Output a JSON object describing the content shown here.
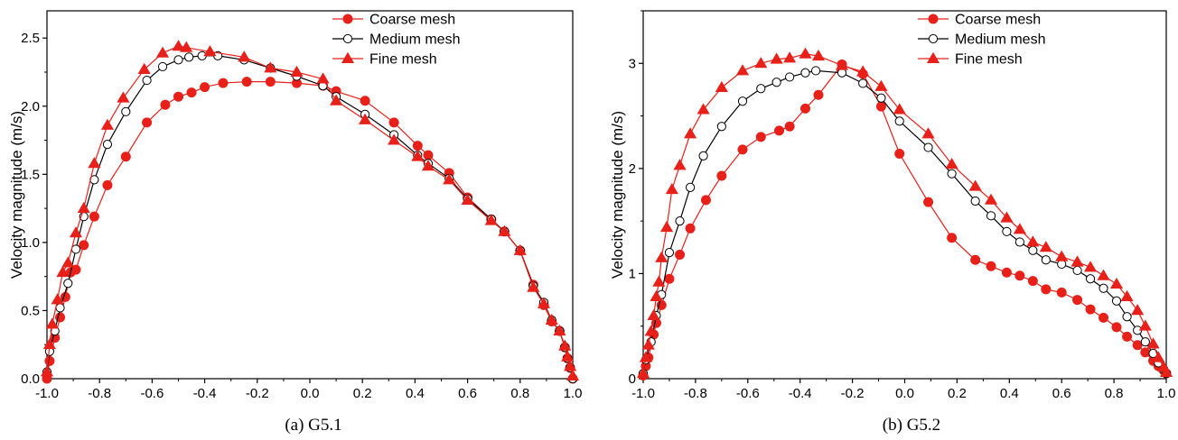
{
  "colors": {
    "red": "#e8201a",
    "black": "#000000",
    "white": "#ffffff"
  },
  "chart_data": [
    {
      "type": "line",
      "caption": "(a) G5.1",
      "xlabel": "",
      "ylabel": "Velocity magnitude (m/s)",
      "xlim": [
        -1.0,
        1.0
      ],
      "ylim": [
        0.0,
        2.7
      ],
      "xticks": [
        -1.0,
        -0.8,
        -0.6,
        -0.4,
        -0.2,
        0.0,
        0.2,
        0.4,
        0.6,
        0.8,
        1.0
      ],
      "xtick_labels": [
        "-1.0",
        "-0.8",
        "-0.6",
        "-0.4",
        "-0.2",
        "0.0",
        "0.2",
        "0.4",
        "0.6",
        "0.8",
        "1.0"
      ],
      "yticks": [
        0.0,
        0.5,
        1.0,
        1.5,
        2.0,
        2.5
      ],
      "ytick_labels": [
        "0.0",
        "0.5",
        "1.0",
        "1.5",
        "2.0",
        "2.5"
      ],
      "legend_position": "top-right",
      "series": [
        {
          "name": "Coarse mesh",
          "marker": "circle-filled",
          "color": "#e8201a",
          "x": [
            -1.0,
            -0.99,
            -0.97,
            -0.95,
            -0.93,
            -0.91,
            -0.89,
            -0.86,
            -0.82,
            -0.77,
            -0.7,
            -0.62,
            -0.55,
            -0.5,
            -0.45,
            -0.4,
            -0.33,
            -0.24,
            -0.15,
            -0.05,
            0.05,
            0.1,
            0.21,
            0.32,
            0.41,
            0.45,
            0.53,
            0.6,
            0.69,
            0.74,
            0.8,
            0.85,
            0.89,
            0.92,
            0.95,
            0.97,
            0.98,
            0.99,
            1.0
          ],
          "y": [
            0.0,
            0.13,
            0.3,
            0.45,
            0.6,
            0.78,
            0.8,
            0.98,
            1.19,
            1.42,
            1.63,
            1.88,
            2.01,
            2.07,
            2.1,
            2.14,
            2.17,
            2.18,
            2.18,
            2.17,
            2.15,
            2.11,
            2.04,
            1.88,
            1.71,
            1.64,
            1.51,
            1.33,
            1.17,
            1.08,
            0.94,
            0.69,
            0.54,
            0.42,
            0.35,
            0.23,
            0.15,
            0.08,
            0.0
          ]
        },
        {
          "name": "Medium mesh",
          "marker": "circle-open",
          "color": "#000000",
          "x": [
            -1.0,
            -0.99,
            -0.97,
            -0.95,
            -0.92,
            -0.89,
            -0.86,
            -0.82,
            -0.77,
            -0.7,
            -0.62,
            -0.56,
            -0.5,
            -0.46,
            -0.41,
            -0.35,
            -0.25,
            -0.15,
            -0.05,
            0.05,
            0.1,
            0.21,
            0.32,
            0.41,
            0.45,
            0.53,
            0.6,
            0.69,
            0.74,
            0.8,
            0.85,
            0.89,
            0.92,
            0.95,
            0.97,
            0.98,
            0.99,
            1.0
          ],
          "y": [
            0.05,
            0.2,
            0.35,
            0.52,
            0.7,
            0.95,
            1.19,
            1.46,
            1.72,
            1.96,
            2.19,
            2.29,
            2.34,
            2.36,
            2.37,
            2.37,
            2.34,
            2.28,
            2.22,
            2.15,
            2.07,
            1.94,
            1.79,
            1.64,
            1.58,
            1.47,
            1.32,
            1.17,
            1.08,
            0.94,
            0.68,
            0.56,
            0.43,
            0.35,
            0.23,
            0.15,
            0.08,
            0.0
          ]
        },
        {
          "name": "Fine mesh",
          "marker": "triangle-filled",
          "color": "#e8201a",
          "x": [
            -1.0,
            -0.99,
            -0.98,
            -0.96,
            -0.94,
            -0.92,
            -0.89,
            -0.86,
            -0.82,
            -0.77,
            -0.71,
            -0.63,
            -0.56,
            -0.5,
            -0.47,
            -0.38,
            -0.25,
            -0.15,
            -0.05,
            0.05,
            0.1,
            0.21,
            0.32,
            0.41,
            0.45,
            0.53,
            0.6,
            0.69,
            0.74,
            0.8,
            0.85,
            0.89,
            0.92,
            0.95,
            0.97,
            0.98,
            0.99,
            1.0
          ],
          "y": [
            0.05,
            0.25,
            0.4,
            0.58,
            0.78,
            0.85,
            1.07,
            1.25,
            1.58,
            1.86,
            2.06,
            2.27,
            2.39,
            2.44,
            2.43,
            2.4,
            2.36,
            2.28,
            2.25,
            2.2,
            2.04,
            1.9,
            1.75,
            1.63,
            1.56,
            1.46,
            1.31,
            1.16,
            1.08,
            0.94,
            0.67,
            0.55,
            0.43,
            0.35,
            0.24,
            0.16,
            0.09,
            0.02
          ]
        }
      ]
    },
    {
      "type": "line",
      "caption": "(b) G5.2",
      "xlabel": "",
      "ylabel": "Velocity magnitude (m/s)",
      "xlim": [
        -1.0,
        1.0
      ],
      "ylim": [
        0.0,
        3.5
      ],
      "xticks": [
        -1.0,
        -0.8,
        -0.6,
        -0.4,
        -0.2,
        0.0,
        0.2,
        0.4,
        0.6,
        0.8,
        1.0
      ],
      "xtick_labels": [
        "-1.0",
        "-0.8",
        "-0.6",
        "-0.4",
        "-0.2",
        "0.0",
        "0.2",
        "0.4",
        "0.6",
        "0.8",
        "1.0"
      ],
      "yticks": [
        0,
        1,
        2,
        3
      ],
      "ytick_labels": [
        "0",
        "1",
        "2",
        "3"
      ],
      "legend_position": "top-right",
      "series": [
        {
          "name": "Coarse mesh",
          "marker": "circle-filled",
          "color": "#e8201a",
          "x": [
            -1.0,
            -0.99,
            -0.98,
            -0.96,
            -0.95,
            -0.93,
            -0.9,
            -0.86,
            -0.82,
            -0.76,
            -0.7,
            -0.62,
            -0.55,
            -0.48,
            -0.44,
            -0.38,
            -0.33,
            -0.24,
            -0.16,
            -0.09,
            -0.02,
            0.09,
            0.18,
            0.27,
            0.33,
            0.39,
            0.44,
            0.49,
            0.54,
            0.6,
            0.66,
            0.71,
            0.76,
            0.81,
            0.85,
            0.89,
            0.92,
            0.95,
            0.97,
            0.99,
            1.0
          ],
          "y": [
            0.03,
            0.12,
            0.2,
            0.42,
            0.53,
            0.7,
            0.95,
            1.18,
            1.43,
            1.7,
            1.93,
            2.18,
            2.3,
            2.36,
            2.4,
            2.57,
            2.7,
            2.99,
            2.9,
            2.59,
            2.14,
            1.68,
            1.34,
            1.13,
            1.07,
            1.01,
            0.98,
            0.93,
            0.85,
            0.82,
            0.75,
            0.66,
            0.58,
            0.49,
            0.4,
            0.32,
            0.25,
            0.17,
            0.12,
            0.08,
            0.05
          ]
        },
        {
          "name": "Medium mesh",
          "marker": "circle-open",
          "color": "#000000",
          "x": [
            -1.0,
            -0.99,
            -0.97,
            -0.95,
            -0.93,
            -0.9,
            -0.86,
            -0.82,
            -0.77,
            -0.7,
            -0.62,
            -0.55,
            -0.49,
            -0.44,
            -0.38,
            -0.34,
            -0.24,
            -0.16,
            -0.09,
            -0.02,
            0.09,
            0.18,
            0.27,
            0.33,
            0.39,
            0.44,
            0.49,
            0.54,
            0.6,
            0.66,
            0.71,
            0.76,
            0.81,
            0.85,
            0.89,
            0.92,
            0.95,
            0.97,
            0.99,
            1.0
          ],
          "y": [
            0.05,
            0.18,
            0.35,
            0.6,
            0.8,
            1.2,
            1.5,
            1.82,
            2.12,
            2.4,
            2.64,
            2.76,
            2.82,
            2.87,
            2.91,
            2.93,
            2.91,
            2.81,
            2.67,
            2.45,
            2.2,
            1.95,
            1.69,
            1.55,
            1.4,
            1.3,
            1.22,
            1.13,
            1.09,
            1.03,
            0.95,
            0.86,
            0.74,
            0.59,
            0.46,
            0.35,
            0.24,
            0.15,
            0.09,
            0.05
          ]
        },
        {
          "name": "Fine mesh",
          "marker": "triangle-filled",
          "color": "#e8201a",
          "x": [
            -1.0,
            -0.99,
            -0.98,
            -0.97,
            -0.96,
            -0.95,
            -0.94,
            -0.93,
            -0.91,
            -0.89,
            -0.86,
            -0.82,
            -0.77,
            -0.7,
            -0.62,
            -0.55,
            -0.49,
            -0.44,
            -0.38,
            -0.33,
            -0.24,
            -0.16,
            -0.09,
            -0.02,
            0.09,
            0.18,
            0.27,
            0.33,
            0.39,
            0.44,
            0.49,
            0.54,
            0.6,
            0.66,
            0.71,
            0.76,
            0.81,
            0.85,
            0.89,
            0.92,
            0.95,
            0.97,
            0.99,
            1.0
          ],
          "y": [
            0.05,
            0.2,
            0.32,
            0.45,
            0.6,
            0.78,
            0.92,
            1.15,
            1.44,
            1.8,
            2.03,
            2.33,
            2.56,
            2.77,
            2.93,
            3.0,
            3.04,
            3.05,
            3.09,
            3.07,
            2.98,
            2.92,
            2.78,
            2.56,
            2.33,
            2.04,
            1.83,
            1.7,
            1.53,
            1.42,
            1.3,
            1.25,
            1.16,
            1.11,
            1.06,
            0.98,
            0.9,
            0.78,
            0.65,
            0.5,
            0.33,
            0.2,
            0.11,
            0.06
          ]
        }
      ]
    }
  ]
}
